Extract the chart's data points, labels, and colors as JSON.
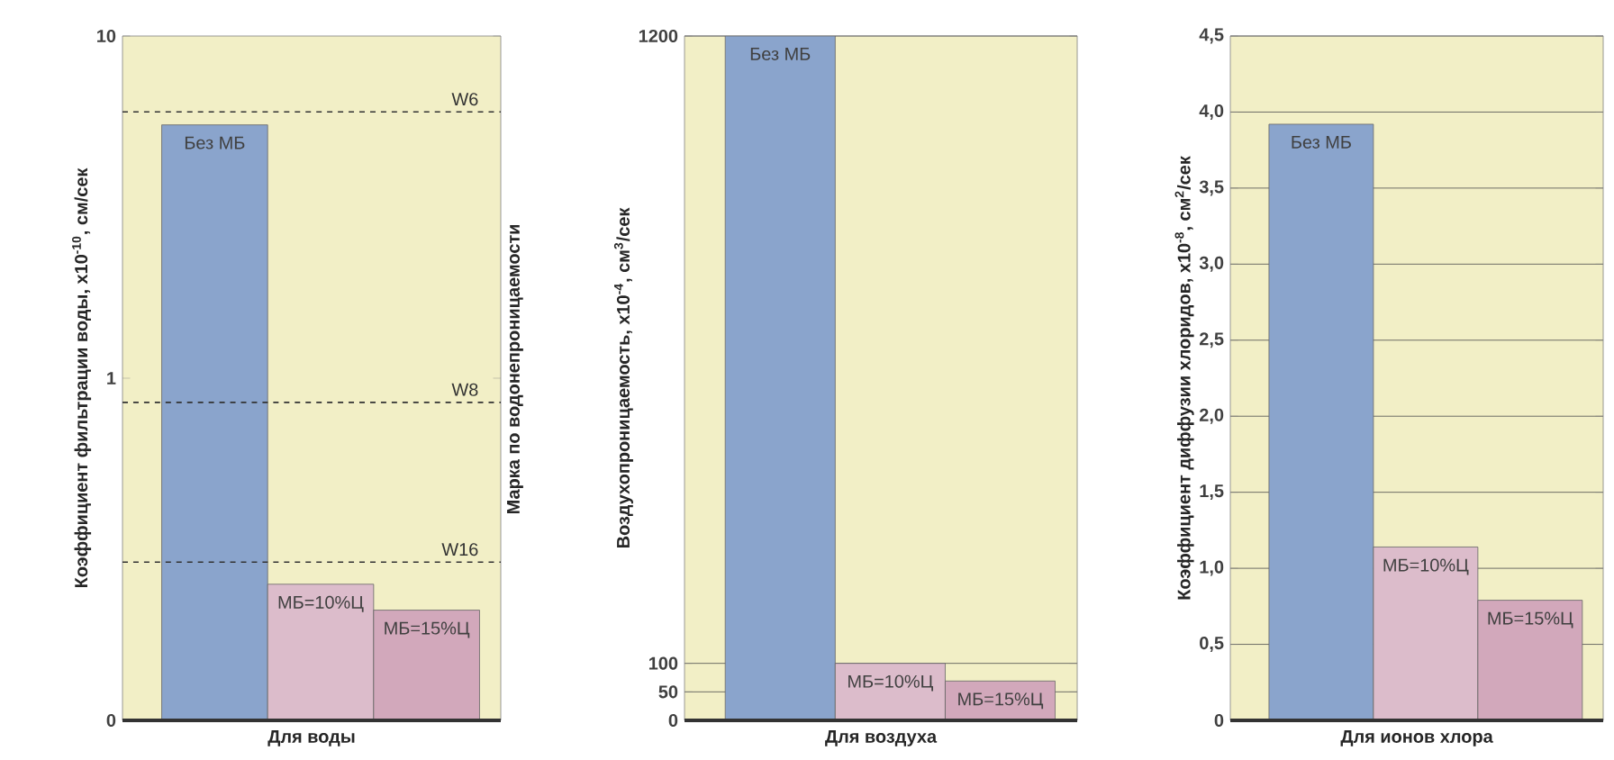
{
  "chart_data": [
    {
      "type": "bar",
      "categories": [
        "Без МБ",
        "МБ=10%Ц",
        "МБ=15%Ц"
      ],
      "values": [
        5.5,
        0.25,
        0.21
      ],
      "colors": [
        "#8aa4cc",
        "#dcbccb",
        "#d2a8bb"
      ],
      "xlabel": "Для воды",
      "ylabel": "Коэффициент фильтрации воды, x10$^{-10}$, см/сек",
      "y2label": "Марка по водонепроницаемости",
      "log": "y",
      "ylim": [
        0.1,
        10
      ],
      "yticks": [
        {
          "value": 0.1,
          "label": "0"
        },
        1,
        10
      ],
      "ref_lines": [
        {
          "axis": "y",
          "value": 6,
          "label": "W6",
          "line_style": "dashed",
          "color": "#333333"
        },
        {
          "axis": "y",
          "value": 0.85,
          "label": "W8",
          "line_style": "dashed",
          "color": "#333333"
        },
        {
          "axis": "y",
          "value": 0.29,
          "label": "W16",
          "line_style": "dashed",
          "color": "#333333"
        }
      ]
    },
    {
      "type": "bar",
      "categories": [
        "Без МБ",
        "МБ=10%Ц",
        "МБ=15%Ц"
      ],
      "values": [
        1200,
        100,
        69
      ],
      "colors": [
        "#8aa4cc",
        "#dcbccb",
        "#d2a8bb"
      ],
      "xlabel": "Для воздуха",
      "ylabel": "Воздухопроницаемость, x10$^{-4}$, см$^{3}$/сек",
      "ylim": [
        0,
        1200
      ],
      "yticks": [
        0,
        50,
        100,
        1200
      ],
      "grid": "y"
    },
    {
      "type": "bar",
      "categories": [
        "Без МБ",
        "МБ=10%Ц",
        "МБ=15%Ц"
      ],
      "values": [
        3.92,
        1.14,
        0.79
      ],
      "colors": [
        "#8aa4cc",
        "#dcbccb",
        "#d2a8bb"
      ],
      "xlabel": "Для ионов хлора",
      "ylabel": "Коэффициент диффузии хлоридов, x10$^{-8}$, см$^{2}$/сек",
      "ylim": [
        0,
        4.5
      ],
      "yticks": [
        0,
        {
          "value": 0.5,
          "label": "0,5"
        },
        {
          "value": 1,
          "label": "1,0"
        },
        {
          "value": 1.5,
          "label": "1,5"
        },
        {
          "value": 2,
          "label": "2,0"
        },
        {
          "value": 2.5,
          "label": "2,5"
        },
        {
          "value": 3,
          "label": "3,0"
        },
        {
          "value": 3.5,
          "label": "3,5"
        },
        {
          "value": 4,
          "label": "4,0"
        },
        {
          "value": 4.5,
          "label": "4,5"
        }
      ],
      "grid": "y"
    }
  ]
}
